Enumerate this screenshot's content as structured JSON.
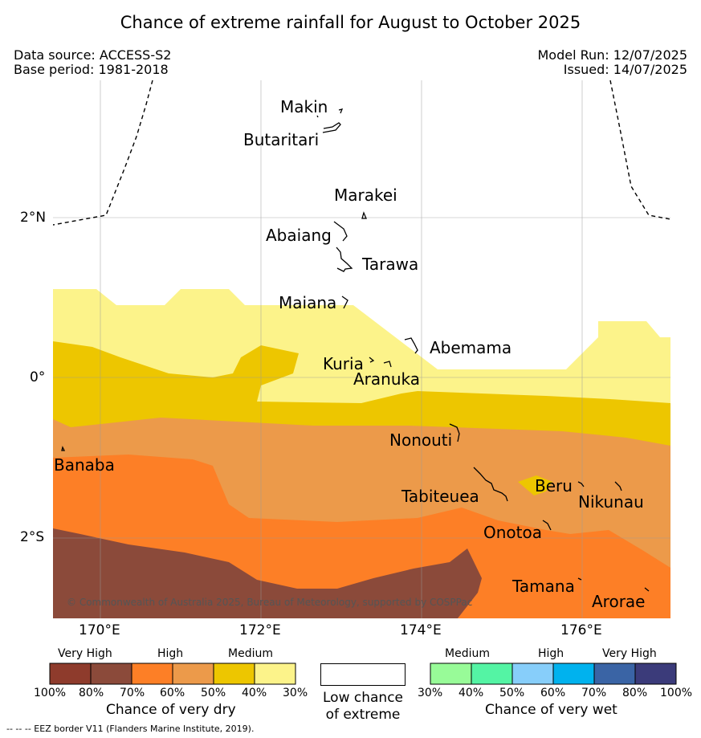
{
  "title": "Chance of extreme rainfall for August to October 2025",
  "info": {
    "data_source": "Data source: ACCESS-S2",
    "base_period": "Base period: 1981-2018",
    "model_run": "Model Run: 12/07/2025",
    "issued": "Issued: 14/07/2025"
  },
  "axes": {
    "x_ticks": [
      "170°E",
      "172°E",
      "174°E",
      "176°E"
    ],
    "y_ticks": [
      "2°N",
      "0°",
      "2°S"
    ]
  },
  "places": {
    "makin": "Makin",
    "butaritari": "Butaritari",
    "marakei": "Marakei",
    "abaiang": "Abaiang",
    "tarawa": "Tarawa",
    "maiana": "Maiana",
    "abemama": "Abemama",
    "kuria": "Kuria",
    "aranuka": "Aranuka",
    "nonouti": "Nonouti",
    "banaba": "Banaba",
    "tabiteuea": "Tabiteuea",
    "beru": "Beru",
    "nikunau": "Nikunau",
    "onotoa": "Onotoa",
    "tamana": "Tamana",
    "arorae": "Arorae"
  },
  "credit": "© Commonwealth of Australia 2025, Bureau of Meteorology, supported by COSPPac",
  "legend": {
    "dry": {
      "categories": [
        "Very High",
        "High",
        "Medium"
      ],
      "ticks": [
        "100%",
        "80%",
        "70%",
        "60%",
        "50%",
        "40%",
        "30%"
      ],
      "colors": [
        "#8e3b2c",
        "#8b4a3a",
        "#fd7f26",
        "#ec9a4a",
        "#edc600",
        "#fcf38a"
      ],
      "label": "Chance of very dry"
    },
    "neutral": {
      "line1": "Low chance",
      "line2": "of extreme"
    },
    "wet": {
      "categories": [
        "Medium",
        "High",
        "Very High"
      ],
      "ticks": [
        "30%",
        "40%",
        "50%",
        "60%",
        "70%",
        "80%",
        "100%"
      ],
      "colors": [
        "#98fb98",
        "#54f4a4",
        "#87cefa",
        "#00b2ee",
        "#3a64a5",
        "#3b3b7a"
      ],
      "label": "Chance of very wet"
    }
  },
  "footnote": "--  --  -- EEZ border V11 (Flanders Marine Institute, 2019)."
}
